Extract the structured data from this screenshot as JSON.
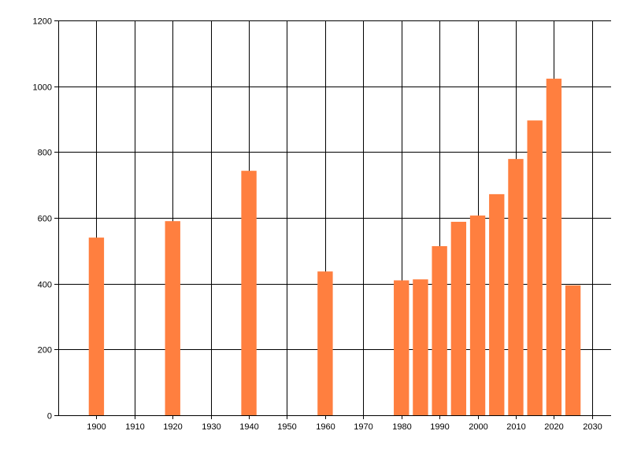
{
  "chart_data": {
    "type": "bar",
    "title": "",
    "xlabel": "",
    "ylabel": "",
    "x": [
      1900,
      1920,
      1940,
      1960,
      1980,
      1985,
      1990,
      1995,
      2000,
      2005,
      2010,
      2015,
      2020,
      2025
    ],
    "values": [
      540,
      590,
      743,
      437,
      410,
      413,
      514,
      588,
      607,
      672,
      779,
      896,
      1023,
      395
    ],
    "xlim": [
      1890,
      2035
    ],
    "ylim": [
      0,
      1200
    ],
    "x_ticks": [
      1900,
      1910,
      1920,
      1930,
      1940,
      1950,
      1960,
      1970,
      1980,
      1990,
      2000,
      2010,
      2020,
      2030
    ],
    "x_tick_labels": [
      "1900",
      "1910",
      "1920",
      "1930",
      "1940",
      "1950",
      "1960",
      "1970",
      "1980",
      "1990",
      "2000",
      "2010",
      "2020",
      "2030"
    ],
    "y_ticks": [
      0,
      200,
      400,
      600,
      800,
      1000,
      1200
    ],
    "y_tick_labels": [
      "0",
      "200",
      "400",
      "600",
      "800",
      "1000",
      "1200"
    ],
    "bar_color": "#ff7f3f",
    "grid": true,
    "legend": "none"
  }
}
